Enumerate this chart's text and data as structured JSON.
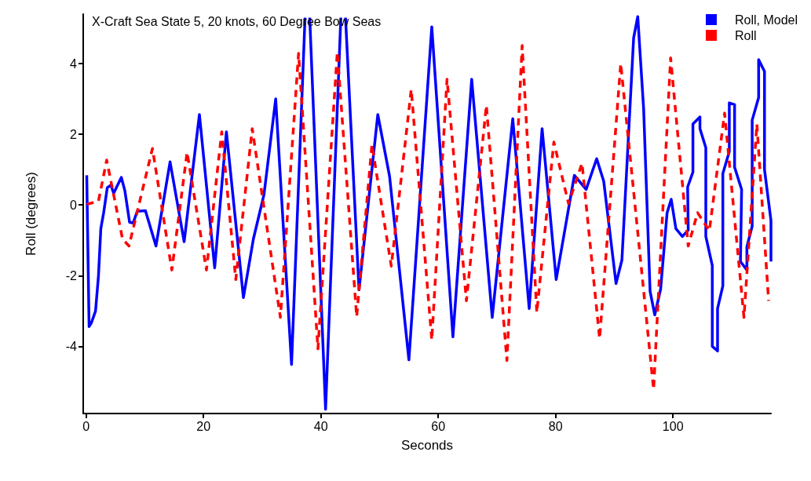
{
  "chart_data": {
    "type": "line",
    "title": "X-Craft Sea State 5, 20 knots, 60 Degree Bow Seas",
    "xlabel": "Seconds",
    "ylabel": "Roll (degrees)",
    "xlim": [
      -0.5,
      116.7
    ],
    "xticks": [
      0,
      20,
      40,
      60,
      80,
      100
    ],
    "ylim": [
      -5.9,
      5.4
    ],
    "yticks": [
      -4,
      -2,
      0,
      2,
      4
    ],
    "grid": false,
    "legend": "top right",
    "marker": "none",
    "series": [
      {
        "name": "Roll, Model",
        "color": "#0000ff",
        "line_style": "solid",
        "x": [
          0.1,
          0.5,
          0.9,
          1.6,
          2.1,
          2.5,
          3.0,
          3.6,
          4.2,
          4.7,
          5.2,
          6.0,
          6.6,
          7.4,
          8.0,
          8.7,
          10.1,
          11.9,
          14.3,
          16.7,
          19.3,
          21.9,
          23.9,
          26.8,
          28.5,
          30.3,
          32.3,
          35.0,
          37.3,
          37.7,
          38.1,
          40.8,
          43.4,
          43.8,
          44.2,
          46.5,
          49.7,
          51.7,
          55.0,
          58.9,
          62.5,
          65.7,
          69.2,
          72.7,
          75.5,
          77.7,
          80.1,
          83.2,
          85.2,
          87.0,
          88.2,
          90.3,
          91.3,
          93.3,
          94.0,
          95.0,
          96.1,
          96.9,
          97.9,
          99.0,
          99.7,
          100.5,
          101.6,
          102.6,
          102.5,
          103.4,
          103.4,
          104.6,
          104.6,
          105.6,
          105.6,
          106.7,
          106.7,
          107.6,
          107.6,
          108.5,
          108.5,
          109.6,
          109.6,
          110.5,
          110.5,
          111.7,
          111.5,
          112.6,
          112.6,
          113.5,
          113.5,
          114.6,
          114.6,
          115.6,
          115.6,
          116.7,
          116.7
        ],
        "values": [
          0.84,
          -3.44,
          -3.33,
          -3.0,
          -2.0,
          -0.67,
          -0.2,
          0.49,
          0.56,
          0.33,
          0.51,
          0.78,
          0.4,
          -0.49,
          -0.51,
          -0.18,
          -0.16,
          -1.16,
          1.22,
          -1.04,
          2.56,
          -1.78,
          2.07,
          -2.62,
          -0.96,
          0.29,
          3.0,
          -4.51,
          5.3,
          null,
          5.3,
          -5.78,
          5.3,
          null,
          5.3,
          -2.4,
          2.56,
          0.82,
          -4.38,
          5.04,
          -3.73,
          3.56,
          -3.18,
          2.44,
          -2.93,
          2.16,
          -2.11,
          0.84,
          0.44,
          1.31,
          0.67,
          -2.22,
          -1.56,
          4.73,
          5.33,
          2.73,
          -2.44,
          -3.11,
          -2.38,
          -0.22,
          0.16,
          -0.67,
          -0.89,
          -0.71,
          0.51,
          0.93,
          2.29,
          2.49,
          2.16,
          1.62,
          -0.89,
          -1.71,
          -4.0,
          -4.13,
          -2.93,
          -2.29,
          0.89,
          1.51,
          2.89,
          2.84,
          1.07,
          0.44,
          -1.6,
          -1.84,
          -1.18,
          -0.6,
          2.4,
          3.04,
          4.11,
          3.78,
          1.0,
          -0.44,
          -1.6
        ]
      },
      {
        "name": "Roll",
        "color": "#ff0000",
        "line_style": "dashed",
        "x": [
          0.1,
          2.1,
          3.5,
          6.2,
          7.3,
          11.3,
          14.6,
          17.2,
          20.5,
          23.1,
          25.5,
          28.3,
          33.1,
          36.2,
          39.5,
          42.8,
          46.1,
          48.7,
          52.0,
          55.4,
          58.9,
          61.5,
          64.8,
          68.2,
          71.7,
          74.3,
          76.8,
          79.7,
          82.2,
          84.5,
          87.5,
          91.1,
          96.7,
          99.6,
          102.6,
          104.2,
          106.2,
          108.8,
          112.1,
          114.3,
          116.3
        ],
        "values": [
          0.02,
          0.11,
          1.27,
          -0.96,
          -1.16,
          1.6,
          -1.84,
          1.49,
          -1.84,
          2.07,
          -2.11,
          2.16,
          -3.18,
          4.29,
          -4.07,
          4.33,
          -3.16,
          1.71,
          -1.73,
          3.27,
          -3.82,
          3.56,
          -2.71,
          2.82,
          -4.4,
          4.51,
          -3.04,
          1.78,
          0.04,
          1.18,
          -3.78,
          4.0,
          -5.22,
          4.16,
          -1.16,
          -0.22,
          -0.73,
          2.6,
          -3.18,
          2.29,
          -2.71
        ]
      }
    ]
  }
}
